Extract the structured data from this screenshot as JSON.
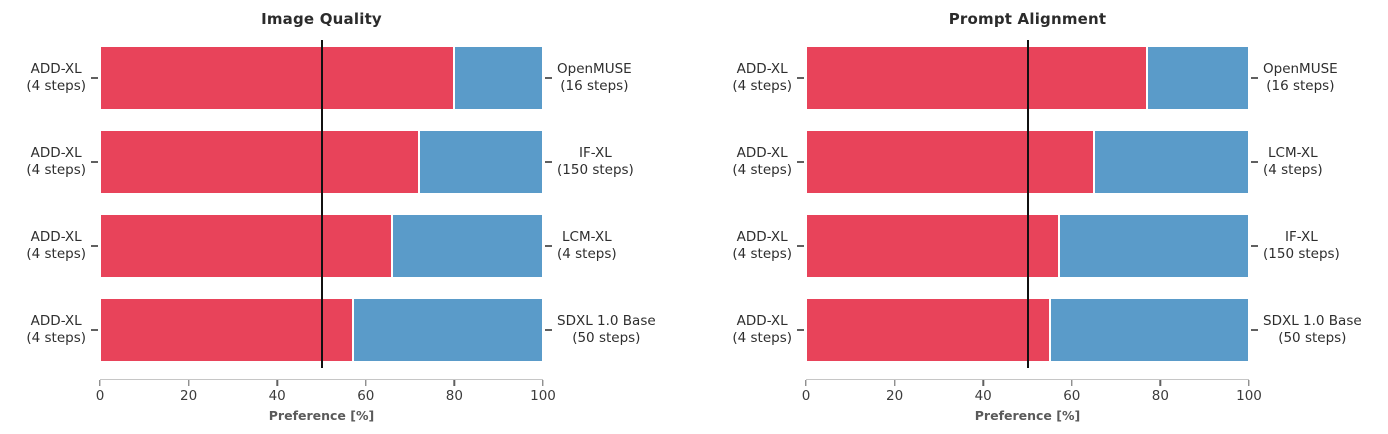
{
  "chart_data": [
    {
      "type": "bar",
      "orientation": "horizontal",
      "stacked": true,
      "title": "Image Quality",
      "xlabel": "Preference [%]",
      "xlim": [
        0,
        100
      ],
      "xticks": [
        0,
        20,
        40,
        60,
        80,
        100
      ],
      "reference_line_x": 50,
      "colors": {
        "preferred": "#E8435A",
        "other": "#5A9BC9",
        "reference_line": "#111111"
      },
      "legend": "none",
      "rows": [
        {
          "left_line1": "ADD-XL",
          "left_line2": "(4 steps)",
          "right_line1": "OpenMUSE",
          "right_line2": "(16 steps)",
          "preferred_pct": 80,
          "other_pct": 20
        },
        {
          "left_line1": "ADD-XL",
          "left_line2": "(4 steps)",
          "right_line1": "IF-XL",
          "right_line2": "(150 steps)",
          "preferred_pct": 72,
          "other_pct": 28
        },
        {
          "left_line1": "ADD-XL",
          "left_line2": "(4 steps)",
          "right_line1": "LCM-XL",
          "right_line2": "(4 steps)",
          "preferred_pct": 66,
          "other_pct": 34
        },
        {
          "left_line1": "ADD-XL",
          "left_line2": "(4 steps)",
          "right_line1": "SDXL 1.0 Base",
          "right_line2": "(50 steps)",
          "preferred_pct": 57,
          "other_pct": 43
        }
      ]
    },
    {
      "type": "bar",
      "orientation": "horizontal",
      "stacked": true,
      "title": "Prompt Alignment",
      "xlabel": "Preference [%]",
      "xlim": [
        0,
        100
      ],
      "xticks": [
        0,
        20,
        40,
        60,
        80,
        100
      ],
      "reference_line_x": 50,
      "colors": {
        "preferred": "#E8435A",
        "other": "#5A9BC9",
        "reference_line": "#111111"
      },
      "legend": "none",
      "rows": [
        {
          "left_line1": "ADD-XL",
          "left_line2": "(4 steps)",
          "right_line1": "OpenMUSE",
          "right_line2": "(16 steps)",
          "preferred_pct": 77,
          "other_pct": 23
        },
        {
          "left_line1": "ADD-XL",
          "left_line2": "(4 steps)",
          "right_line1": "LCM-XL",
          "right_line2": "(4 steps)",
          "preferred_pct": 65,
          "other_pct": 35
        },
        {
          "left_line1": "ADD-XL",
          "left_line2": "(4 steps)",
          "right_line1": "IF-XL",
          "right_line2": "(150 steps)",
          "preferred_pct": 57,
          "other_pct": 43
        },
        {
          "left_line1": "ADD-XL",
          "left_line2": "(4 steps)",
          "right_line1": "SDXL 1.0 Base",
          "right_line2": "(50 steps)",
          "preferred_pct": 55,
          "other_pct": 45
        }
      ]
    }
  ]
}
